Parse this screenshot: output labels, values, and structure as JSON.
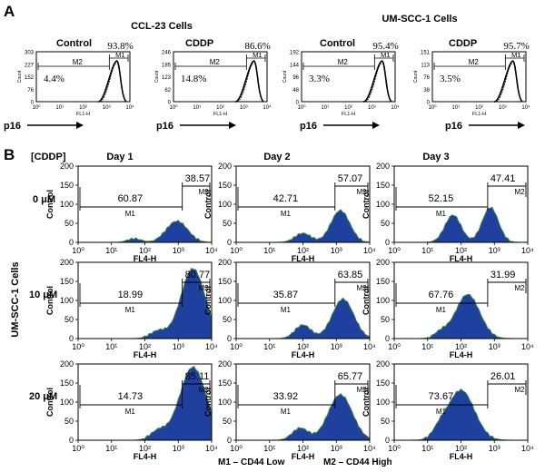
{
  "panel_a": {
    "label": "A",
    "groups": [
      {
        "title": "CCL-23 Cells"
      },
      {
        "title": "UM-SCC-1 Cells"
      }
    ],
    "axis_label": "p16",
    "plots": [
      {
        "title": "Control",
        "m2_label": "M2",
        "m1_label": "M1",
        "m2_pct": "4.4%",
        "m1_pct": "93.8%",
        "yticks": [
          "303",
          "227",
          "152",
          "76",
          "0"
        ],
        "xlabel": "FL1-H",
        "ylabel": "Count",
        "xticks": [
          "10⁰",
          "10¹",
          "10²",
          "10³",
          "10⁴"
        ]
      },
      {
        "title": "CDDP",
        "m2_label": "M2",
        "m1_label": "M1",
        "m2_pct": "14.8%",
        "m1_pct": "86.6%",
        "yticks": [
          "246",
          "185",
          "123",
          "62",
          "0"
        ],
        "xlabel": "FL1-H",
        "ylabel": "Count",
        "xticks": [
          "10⁰",
          "10¹",
          "10²",
          "10³",
          "10⁴"
        ]
      },
      {
        "title": "Control",
        "m2_label": "M2",
        "m1_label": "M1",
        "m2_pct": "3.3%",
        "m1_pct": "95.4%",
        "yticks": [
          "192",
          "144",
          "96",
          "48",
          "0"
        ],
        "xlabel": "FL1-H",
        "ylabel": "Count",
        "xticks": [
          "10⁰",
          "10¹",
          "10²",
          "10³",
          "10⁴"
        ]
      },
      {
        "title": "CDDP",
        "m2_label": "M2",
        "m1_label": "M1",
        "m2_pct": "3.5%",
        "m1_pct": "95.7%",
        "yticks": [
          "151",
          "113",
          "76",
          "38",
          "0"
        ],
        "xlabel": "FL1-H",
        "ylabel": "Count",
        "xticks": [
          "10⁰",
          "10¹",
          "10²",
          "10³",
          "10⁴"
        ]
      }
    ]
  },
  "panel_b": {
    "label": "B",
    "concentration_header": "[CDDP]",
    "row_axis_label": "UM-SCC-1 Cells",
    "days": [
      "Day 1",
      "Day 2",
      "Day 3"
    ],
    "concentrations": [
      "0 μM",
      "10 μM",
      "20 μM"
    ],
    "xlabel": "FL4-H",
    "ylabel": "Control",
    "yticks": [
      "200",
      "150",
      "100",
      "50",
      "0"
    ],
    "xticks": [
      "10⁰",
      "10¹",
      "10²",
      "10³",
      "10⁴"
    ],
    "m1_label": "M1",
    "m2_label": "M2",
    "fill_color": "#2040a0",
    "edge_color": "#3a8a3a",
    "plots": [
      [
        {
          "low": "60.87",
          "high": "38.57"
        },
        {
          "low": "42.71",
          "high": "57.07"
        },
        {
          "low": "52.15",
          "high": "47.41"
        }
      ],
      [
        {
          "low": "18.99",
          "high": "80.77"
        },
        {
          "low": "35.87",
          "high": "63.85"
        },
        {
          "low": "67.76",
          "high": "31.99"
        }
      ],
      [
        {
          "low": "14.73",
          "high": "85.11"
        },
        {
          "low": "33.92",
          "high": "65.77"
        },
        {
          "low": "73.67",
          "high": "26.01"
        }
      ]
    ],
    "legend": {
      "m1": "M1 – CD44 Low",
      "m2": "M2 – CD44 High"
    }
  }
}
